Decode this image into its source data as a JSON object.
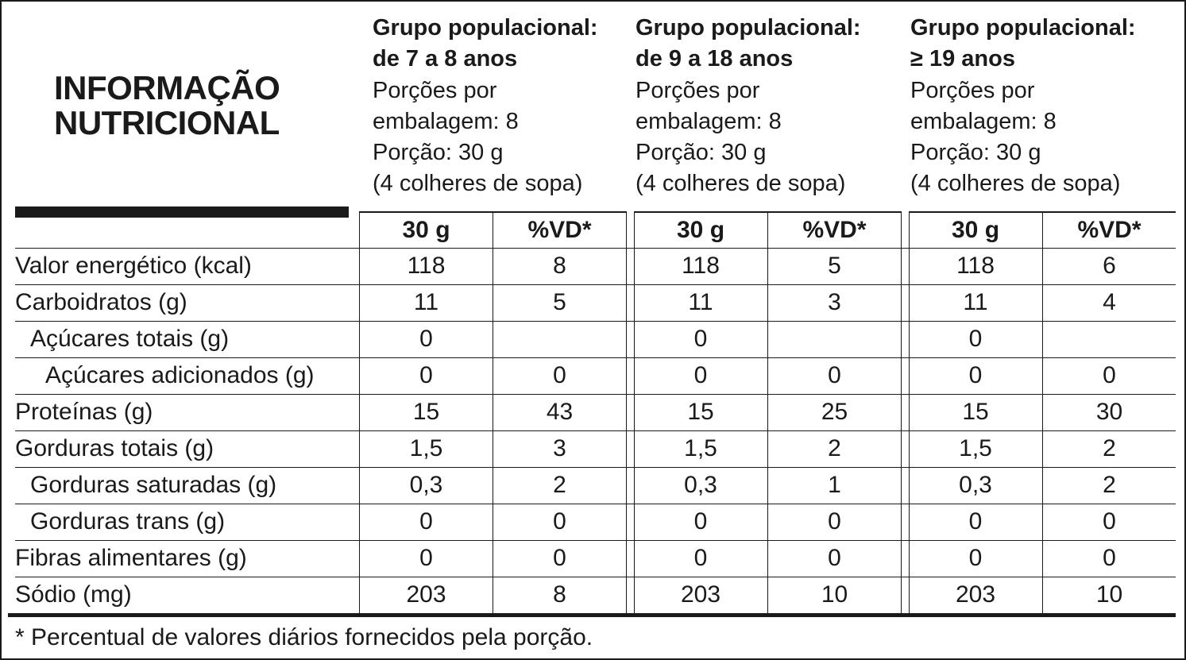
{
  "title": {
    "line1": "INFORMAÇÃO",
    "line2": "NUTRICIONAL"
  },
  "groups": [
    {
      "name": "Grupo populacional:",
      "range": "de 7 a 8 anos",
      "servings_a": "Porções por",
      "servings_b": "embalagem: 8",
      "portion": "Porção: 30 g",
      "spoons": "(4 colheres de sopa)",
      "col_amount": "30 g",
      "col_vd": "%VD*"
    },
    {
      "name": "Grupo populacional:",
      "range": "de 9 a 18 anos",
      "servings_a": "Porções por",
      "servings_b": "embalagem: 8",
      "portion": "Porção: 30 g",
      "spoons": "(4 colheres de sopa)",
      "col_amount": "30 g",
      "col_vd": "%VD*"
    },
    {
      "name": "Grupo populacional:",
      "range": "≥ 19 anos",
      "servings_a": "Porções por",
      "servings_b": "embalagem: 8",
      "portion": "Porção: 30 g",
      "spoons": "(4 colheres de sopa)",
      "col_amount": "30 g",
      "col_vd": "%VD*"
    }
  ],
  "rows": [
    {
      "label": "Valor energético (kcal)",
      "values": [
        "118",
        "8",
        "118",
        "5",
        "118",
        "6"
      ]
    },
    {
      "label": "Carboidratos (g)",
      "values": [
        "11",
        "5",
        "11",
        "3",
        "11",
        "4"
      ]
    },
    {
      "label": "Açúcares totais (g)",
      "values": [
        "0",
        "",
        "0",
        "",
        "0",
        ""
      ]
    },
    {
      "label": "Açúcares adicionados (g)",
      "values": [
        "0",
        "0",
        "0",
        "0",
        "0",
        "0"
      ]
    },
    {
      "label": "Proteínas (g)",
      "values": [
        "15",
        "43",
        "15",
        "25",
        "15",
        "30"
      ]
    },
    {
      "label": "Gorduras totais (g)",
      "values": [
        "1,5",
        "3",
        "1,5",
        "2",
        "1,5",
        "2"
      ]
    },
    {
      "label": "Gorduras saturadas (g)",
      "values": [
        "0,3",
        "2",
        "0,3",
        "1",
        "0,3",
        "2"
      ]
    },
    {
      "label": "Gorduras trans (g)",
      "values": [
        "0",
        "0",
        "0",
        "0",
        "0",
        "0"
      ]
    },
    {
      "label": "Fibras alimentares (g)",
      "values": [
        "0",
        "0",
        "0",
        "0",
        "0",
        "0"
      ]
    },
    {
      "label": "Sódio (mg)",
      "values": [
        "203",
        "8",
        "203",
        "10",
        "203",
        "10"
      ]
    }
  ],
  "footnote": "* Percentual de valores diários fornecidos pela porção."
}
